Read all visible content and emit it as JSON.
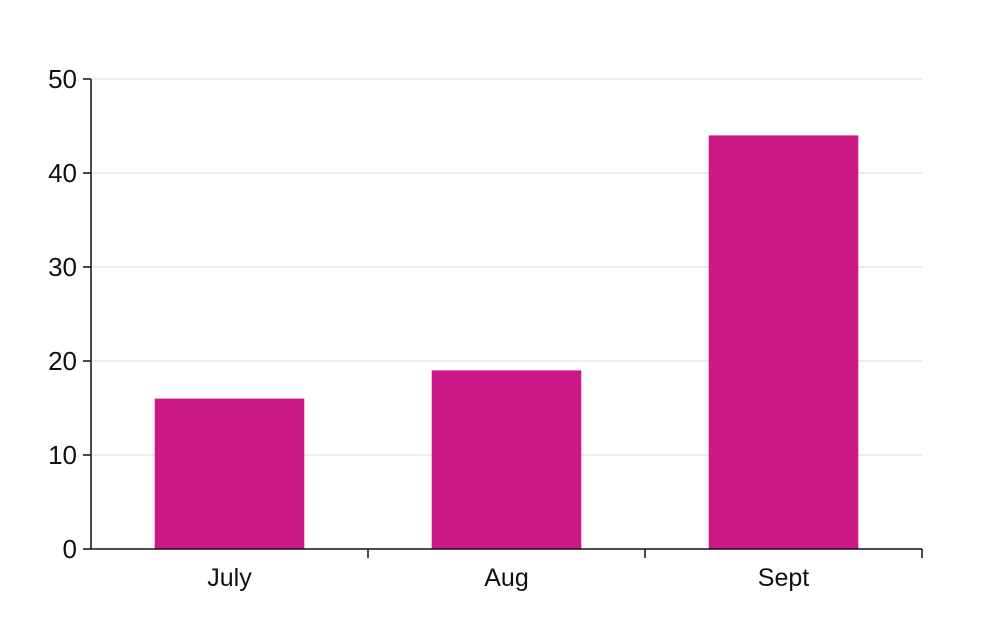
{
  "chart_data": {
    "type": "bar",
    "categories": [
      "July",
      "Aug",
      "Sept"
    ],
    "values": [
      16,
      19,
      44
    ],
    "title": "",
    "xlabel": "",
    "ylabel": "",
    "ylim": [
      0,
      50
    ],
    "yticks": [
      0,
      10,
      20,
      30,
      40,
      50
    ],
    "ytick_labels": [
      "0",
      "10",
      "20",
      "30",
      "40",
      "50"
    ],
    "grid": true,
    "bar_color": "#CC1886",
    "grid_color": "#D9D9D9",
    "axis_color": "#111111"
  }
}
